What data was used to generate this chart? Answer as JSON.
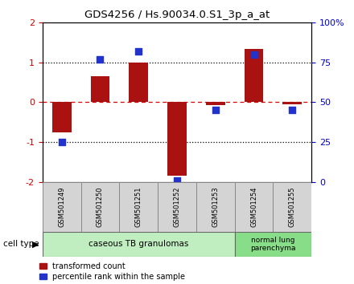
{
  "title": "GDS4256 / Hs.90034.0.S1_3p_a_at",
  "samples": [
    "GSM501249",
    "GSM501250",
    "GSM501251",
    "GSM501252",
    "GSM501253",
    "GSM501254",
    "GSM501255"
  ],
  "red_values": [
    -0.75,
    0.65,
    1.0,
    -1.85,
    -0.08,
    1.35,
    -0.05
  ],
  "blue_percentiles": [
    25,
    77,
    82,
    1,
    45,
    80,
    45
  ],
  "ylim_left": [
    -2,
    2
  ],
  "ylim_right": [
    0,
    100
  ],
  "yticks_left": [
    -2,
    -1,
    0,
    1,
    2
  ],
  "ytick_labels_left": [
    "-2",
    "-1",
    "0",
    "1",
    "2"
  ],
  "yticks_right": [
    0,
    25,
    50,
    75,
    100
  ],
  "ytick_labels_right": [
    "0",
    "25",
    "50",
    "75",
    "100%"
  ],
  "group1_indices": [
    0,
    1,
    2,
    3,
    4
  ],
  "group2_indices": [
    5,
    6
  ],
  "group1_label": "caseous TB granulomas",
  "group2_label": "normal lung\nparenchyma",
  "group1_color": "#c0eec0",
  "group2_color": "#88dd88",
  "cell_type_label": "cell type",
  "legend_red_label": "transformed count",
  "legend_blue_label": "percentile rank within the sample",
  "bar_color": "#aa1111",
  "dot_color": "#2233cc",
  "zero_line_color": "#dd0000",
  "dotted_line_color": "#000000",
  "bg_color": "#ffffff",
  "bar_width": 0.5,
  "dot_size": 30,
  "label_box_color": "#d4d4d4",
  "label_box_edge": "#888888"
}
